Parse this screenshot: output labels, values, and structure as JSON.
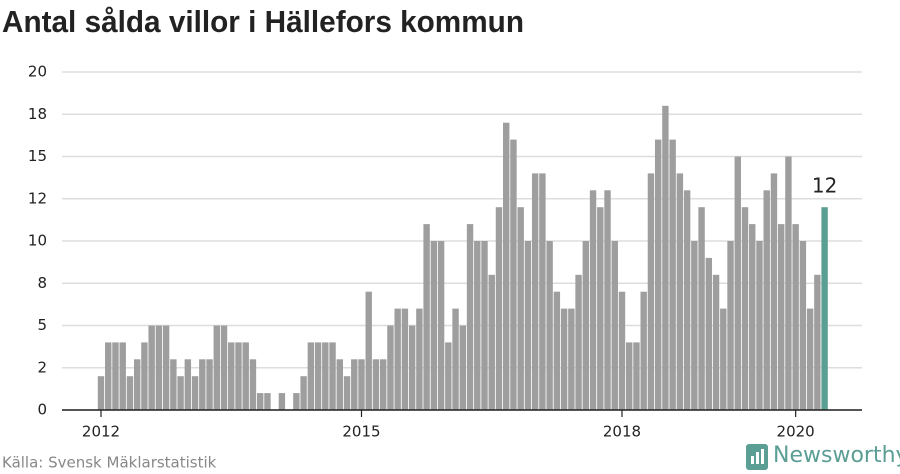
{
  "chart_data": {
    "type": "bar",
    "title": "Antal sålda villor i Hällefors kommun",
    "source": "Källa: Svensk Mäklarstatistik",
    "brand": "Newsworthy",
    "categories": [
      "2012",
      null,
      null,
      null,
      null,
      null,
      null,
      null,
      null,
      null,
      null,
      null,
      null,
      null,
      null,
      null,
      null,
      null,
      null,
      null,
      null,
      null,
      null,
      null,
      null,
      null,
      null,
      null,
      null,
      null,
      null,
      null,
      null,
      null,
      null,
      null,
      "2015",
      null,
      null,
      null,
      null,
      null,
      null,
      null,
      null,
      null,
      null,
      null,
      null,
      null,
      null,
      null,
      null,
      null,
      null,
      null,
      null,
      null,
      null,
      null,
      null,
      null,
      null,
      null,
      null,
      null,
      null,
      null,
      null,
      null,
      null,
      null,
      "2018",
      null,
      null,
      null,
      null,
      null,
      null,
      null,
      null,
      null,
      null,
      null,
      null,
      null,
      null,
      null,
      null,
      null,
      null,
      null,
      null,
      null,
      null,
      null,
      "2020",
      null,
      null,
      null,
      null
    ],
    "values": [
      2,
      4,
      4,
      4,
      2,
      3,
      4,
      5,
      5,
      5,
      3,
      2,
      3,
      2,
      3,
      3,
      5,
      5,
      4,
      4,
      4,
      3,
      1,
      1,
      0,
      1,
      0,
      1,
      2,
      4,
      4,
      4,
      4,
      3,
      2,
      3,
      3,
      7,
      3,
      3,
      5,
      6,
      6,
      5,
      6,
      11,
      10,
      10,
      4,
      6,
      5,
      11,
      10,
      10,
      8,
      12,
      17,
      16,
      12,
      10,
      14,
      14,
      10,
      7,
      6,
      6,
      8,
      10,
      13,
      12,
      13,
      10,
      7,
      4,
      4,
      7,
      14,
      16,
      18,
      16,
      14,
      13,
      10,
      12,
      9,
      8,
      6,
      10,
      15,
      12,
      11,
      10,
      13,
      14,
      11,
      15,
      11,
      10,
      6,
      8,
      12
    ],
    "value_labels": [
      null,
      null,
      null,
      null,
      null,
      null,
      null,
      null,
      null,
      null,
      null,
      null,
      null,
      null,
      null,
      null,
      null,
      null,
      null,
      null,
      null,
      null,
      null,
      null,
      null,
      null,
      null,
      null,
      null,
      null,
      null,
      null,
      null,
      null,
      null,
      null,
      null,
      null,
      null,
      null,
      null,
      null,
      null,
      null,
      null,
      null,
      null,
      null,
      null,
      null,
      null,
      null,
      null,
      null,
      null,
      null,
      null,
      null,
      null,
      null,
      null,
      null,
      null,
      null,
      null,
      null,
      null,
      null,
      null,
      null,
      null,
      null,
      null,
      null,
      null,
      null,
      null,
      null,
      null,
      null,
      null,
      null,
      null,
      null,
      null,
      null,
      null,
      null,
      null,
      null,
      null,
      null,
      null,
      null,
      null,
      null,
      null,
      null,
      null,
      null,
      "12"
    ],
    "color": "#9e9e9e",
    "highlight_color": "#5b9e94",
    "highlight_last": true,
    "ylim": [
      0,
      20
    ],
    "yticks": [
      0,
      {
        "value": 2.5,
        "label": "2"
      },
      5,
      {
        "value": 7.5,
        "label": "8"
      },
      10,
      {
        "value": 12.5,
        "label": "12"
      },
      15,
      {
        "value": 17.5,
        "label": "18"
      },
      20
    ],
    "grid": true
  }
}
